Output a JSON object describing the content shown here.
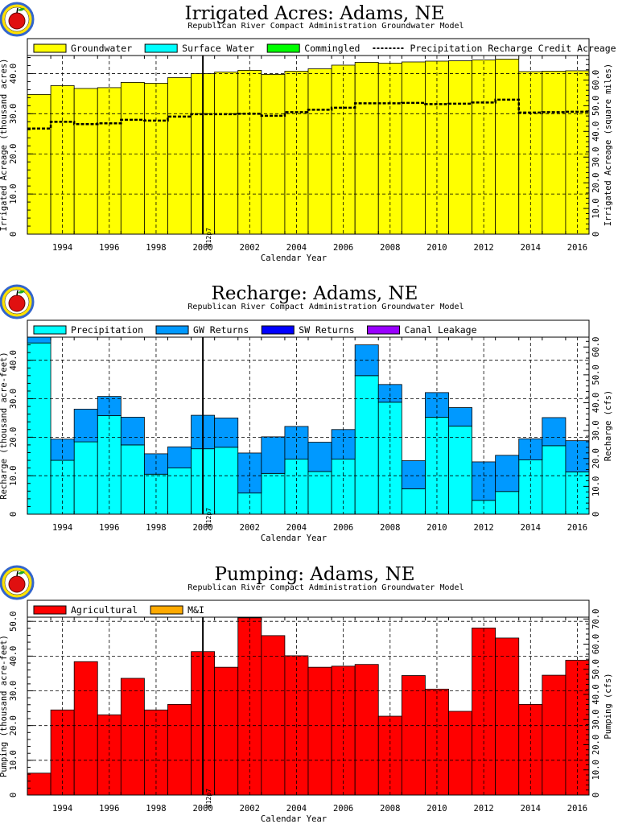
{
  "chart_data": [
    {
      "id": "irrigated",
      "type": "area",
      "title": "Irrigated Acres: Adams, NE",
      "subtitle": "Republican River Compact Administration Groundwater Model",
      "xlabel": "Calendar Year",
      "ylabel": "Irrigated Acreage (thousand acres)",
      "ylabel2": "Irrigated Acreage (square miles)",
      "x": [
        1993,
        1994,
        1995,
        1996,
        1997,
        1998,
        1999,
        2000,
        2001,
        2002,
        2003,
        2004,
        2005,
        2006,
        2007,
        2008,
        2009,
        2010,
        2011,
        2012,
        2013,
        2014,
        2015,
        2016
      ],
      "xlim": [
        1993,
        2017
      ],
      "xticks": [
        "1994",
        "1996",
        "1998",
        "2000",
        "2002",
        "2004",
        "2006",
        "2008",
        "2010",
        "2012",
        "2014",
        "2016"
      ],
      "ylim": [
        0,
        44.5
      ],
      "yticks": [
        "10.0",
        "20.0",
        "30.0",
        "40.0"
      ],
      "yticks2": [
        "10.0",
        "20.0",
        "30.0",
        "40.0",
        "50.0",
        "60.0"
      ],
      "y2_per_unit": 1.5625,
      "series": [
        {
          "name": "Groundwater",
          "color": "#ffff00",
          "values": [
            34.8,
            37.0,
            36.3,
            36.5,
            37.8,
            37.6,
            39.0,
            40.0,
            40.4,
            40.8,
            39.8,
            40.6,
            41.2,
            42.1,
            42.8,
            42.6,
            42.9,
            43.1,
            43.2,
            43.4,
            43.6,
            40.5,
            40.6,
            40.7
          ]
        },
        {
          "name": "Surface Water",
          "color": "#00ffff",
          "values": [
            0,
            0,
            0,
            0,
            0,
            0,
            0,
            0,
            0,
            0,
            0,
            0,
            0,
            0,
            0,
            0,
            0,
            0,
            0,
            0,
            0,
            0,
            0,
            0
          ]
        },
        {
          "name": "Commingled",
          "color": "#00ff00",
          "values": [
            0,
            0,
            0,
            0,
            0,
            0,
            0,
            0,
            0,
            0,
            0,
            0,
            0,
            0,
            0,
            0,
            0,
            0,
            0,
            0,
            0,
            0,
            0,
            0
          ]
        }
      ],
      "line_series": {
        "name": "Precipitation Recharge Credit Acreage",
        "color": "#000000",
        "values": [
          26.3,
          28.0,
          27.4,
          27.6,
          28.5,
          28.3,
          29.3,
          29.9,
          29.9,
          30.0,
          29.5,
          30.4,
          31.0,
          31.5,
          32.6,
          32.6,
          32.7,
          32.4,
          32.5,
          32.8,
          33.5,
          30.3,
          30.4,
          30.5
        ]
      },
      "marker_label": "V12p7",
      "marker_x": 2000.5
    },
    {
      "id": "recharge",
      "type": "area",
      "title": "Recharge: Adams, NE",
      "subtitle": "Republican River Compact Administration Groundwater Model",
      "xlabel": "Calendar Year",
      "ylabel": "Recharge (thousand acre-feet)",
      "ylabel2": "Recharge (cfs)",
      "x": [
        1993,
        1994,
        1995,
        1996,
        1997,
        1998,
        1999,
        2000,
        2001,
        2002,
        2003,
        2004,
        2005,
        2006,
        2007,
        2008,
        2009,
        2010,
        2011,
        2012,
        2013,
        2014,
        2015,
        2016
      ],
      "xlim": [
        1993,
        2017
      ],
      "xticks": [
        "1994",
        "1996",
        "1998",
        "2000",
        "2002",
        "2004",
        "2006",
        "2008",
        "2010",
        "2012",
        "2014",
        "2016"
      ],
      "ylim": [
        0,
        46
      ],
      "yticks": [
        "10.0",
        "20.0",
        "30.0",
        "40.0"
      ],
      "yticks2": [
        "10.0",
        "20.0",
        "30.0",
        "40.0",
        "50.0",
        "60.0"
      ],
      "y2_per_unit": 1.381,
      "series": [
        {
          "name": "Precipitation",
          "color": "#00ffff",
          "values": [
            44.5,
            14.0,
            18.8,
            25.6,
            18.0,
            10.4,
            12.0,
            17.0,
            17.4,
            5.5,
            10.6,
            14.3,
            11.1,
            14.3,
            36.0,
            29.1,
            6.6,
            25.2,
            22.9,
            3.6,
            5.9,
            14.1,
            17.8,
            11.0
          ]
        },
        {
          "name": "GW Returns",
          "color": "#0099ff",
          "values": [
            1.5,
            5.5,
            8.5,
            5.0,
            7.2,
            5.3,
            5.5,
            8.7,
            7.6,
            10.4,
            9.5,
            8.5,
            7.6,
            7.7,
            8.0,
            4.6,
            7.3,
            6.4,
            4.8,
            10.0,
            9.4,
            5.5,
            7.3,
            8.1
          ]
        },
        {
          "name": "SW Returns",
          "color": "#0000ff",
          "values": [
            0,
            0,
            0,
            0,
            0,
            0,
            0,
            0,
            0,
            0,
            0,
            0,
            0,
            0,
            0,
            0,
            0,
            0,
            0,
            0,
            0,
            0,
            0,
            0
          ]
        },
        {
          "name": "Canal Leakage",
          "color": "#9900ff",
          "values": [
            0,
            0,
            0,
            0,
            0,
            0,
            0,
            0,
            0,
            0,
            0,
            0,
            0,
            0,
            0,
            0,
            0,
            0,
            0,
            0,
            0,
            0,
            0,
            0
          ]
        }
      ],
      "marker_label": "V12p7",
      "marker_x": 2000.5
    },
    {
      "id": "pumping",
      "type": "area",
      "title": "Pumping: Adams, NE",
      "subtitle": "Republican River Compact Administration Groundwater Model",
      "xlabel": "Calendar Year",
      "ylabel": "Pumping (thousand acre-feet)",
      "ylabel2": "Pumping (cfs)",
      "x": [
        1993,
        1994,
        1995,
        1996,
        1997,
        1998,
        1999,
        2000,
        2001,
        2002,
        2003,
        2004,
        2005,
        2006,
        2007,
        2008,
        2009,
        2010,
        2011,
        2012,
        2013,
        2014,
        2015,
        2016
      ],
      "xlim": [
        1993,
        2017
      ],
      "xticks": [
        "1994",
        "1996",
        "1998",
        "2000",
        "2002",
        "2004",
        "2006",
        "2008",
        "2010",
        "2012",
        "2014",
        "2016"
      ],
      "ylim": [
        0,
        51.2
      ],
      "yticks": [
        "10.0",
        "20.0",
        "30.0",
        "40.0",
        "50.0"
      ],
      "yticks2": [
        "10.0",
        "20.0",
        "30.0",
        "40.0",
        "50.0",
        "60.0",
        "70.0"
      ],
      "y2_per_unit": 1.381,
      "series": [
        {
          "name": "Agricultural",
          "color": "#ff0000",
          "values": [
            6.3,
            24.5,
            38.4,
            23.1,
            33.6,
            24.5,
            26.1,
            41.3,
            36.8,
            51.0,
            45.9,
            40.1,
            36.8,
            37.1,
            37.6,
            22.7,
            34.4,
            30.5,
            24.1,
            48.1,
            45.2,
            26.1,
            34.5,
            38.8
          ]
        },
        {
          "name": "M&I",
          "color": "#ffaa00",
          "values": [
            0,
            0,
            0,
            0,
            0,
            0,
            0,
            0,
            0,
            0,
            0,
            0,
            0,
            0,
            0,
            0,
            0,
            0,
            0,
            0,
            0,
            0,
            0,
            0
          ]
        }
      ],
      "marker_label": "V12p7",
      "marker_x": 2000.5
    }
  ]
}
